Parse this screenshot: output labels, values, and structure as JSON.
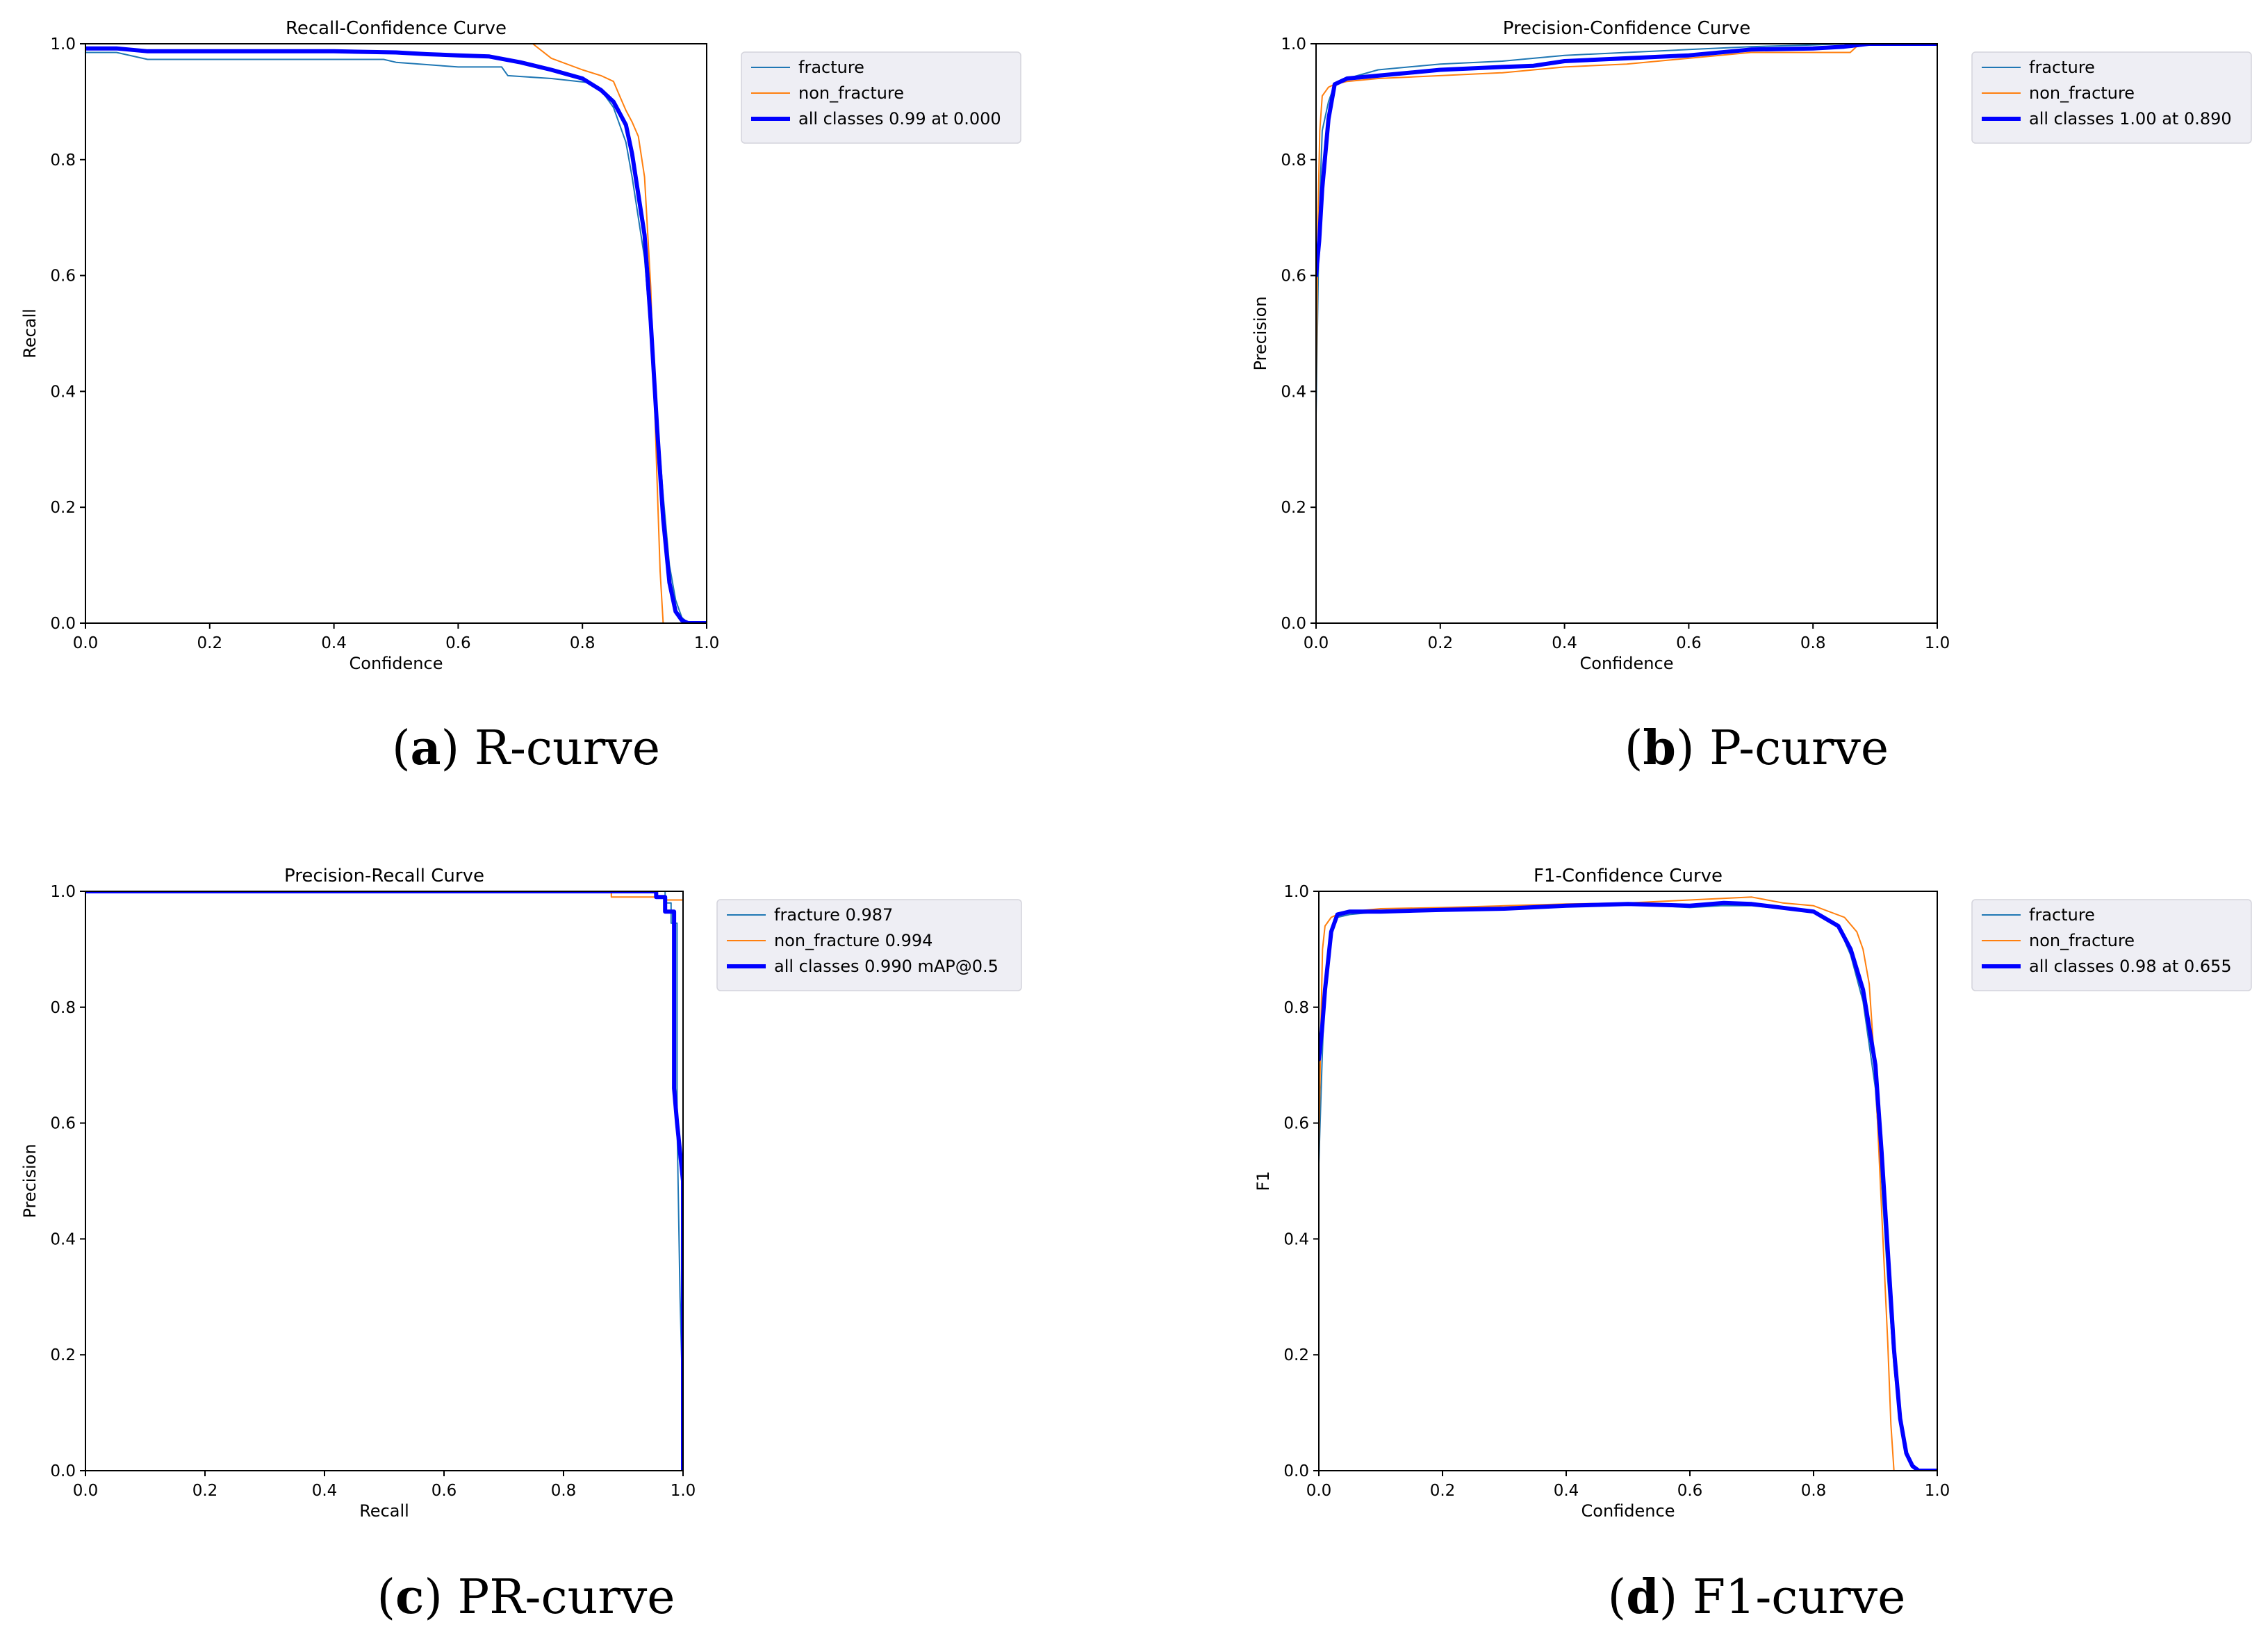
{
  "chart_data": [
    {
      "type": "line",
      "title": "Recall-Confidence Curve",
      "xlabel": "Confidence",
      "ylabel": "Recall",
      "xlim": [
        0,
        1
      ],
      "ylim": [
        0,
        1
      ],
      "xticks": [
        "0.0",
        "0.2",
        "0.4",
        "0.6",
        "0.8",
        "1.0"
      ],
      "yticks": [
        "0.0",
        "0.2",
        "0.4",
        "0.6",
        "0.8",
        "1.0"
      ],
      "grid": false,
      "legend_position": "outside-right",
      "caption": {
        "letter": "a",
        "text": "R-curve"
      },
      "series": [
        {
          "name": "fracture",
          "color": "#1f77b4",
          "width": 2,
          "x": [
            0,
            0.05,
            0.1,
            0.2,
            0.3,
            0.4,
            0.48,
            0.5,
            0.6,
            0.67,
            0.68,
            0.75,
            0.81,
            0.83,
            0.85,
            0.87,
            0.88,
            0.9,
            0.91,
            0.92,
            0.93,
            0.94,
            0.95,
            0.96,
            0.97,
            1.0
          ],
          "y": [
            0.985,
            0.985,
            0.973,
            0.973,
            0.973,
            0.973,
            0.973,
            0.968,
            0.96,
            0.96,
            0.945,
            0.94,
            0.933,
            0.92,
            0.89,
            0.83,
            0.77,
            0.63,
            0.5,
            0.36,
            0.22,
            0.1,
            0.04,
            0.01,
            0.0,
            0.0
          ]
        },
        {
          "name": "non_fracture",
          "color": "#ff7f0e",
          "width": 2,
          "x": [
            0.72,
            0.75,
            0.8,
            0.83,
            0.85,
            0.86,
            0.87,
            0.88,
            0.89,
            0.9,
            0.91,
            0.915,
            0.92,
            0.925,
            0.93
          ],
          "y": [
            1.0,
            0.975,
            0.955,
            0.945,
            0.935,
            0.91,
            0.885,
            0.865,
            0.84,
            0.77,
            0.58,
            0.42,
            0.25,
            0.09,
            0.0
          ]
        },
        {
          "name": "all classes 0.99 at 0.000",
          "color": "#0000ff",
          "width": 6,
          "x": [
            0,
            0.05,
            0.1,
            0.2,
            0.3,
            0.4,
            0.5,
            0.55,
            0.6,
            0.65,
            0.7,
            0.75,
            0.8,
            0.83,
            0.85,
            0.87,
            0.88,
            0.9,
            0.91,
            0.92,
            0.93,
            0.94,
            0.95,
            0.96,
            0.97,
            1.0
          ],
          "y": [
            0.992,
            0.992,
            0.987,
            0.987,
            0.987,
            0.987,
            0.985,
            0.982,
            0.98,
            0.978,
            0.968,
            0.955,
            0.94,
            0.92,
            0.9,
            0.86,
            0.81,
            0.67,
            0.52,
            0.34,
            0.18,
            0.07,
            0.02,
            0.005,
            0.0,
            0.0
          ]
        }
      ]
    },
    {
      "type": "line",
      "title": "Precision-Confidence Curve",
      "xlabel": "Confidence",
      "ylabel": "Precision",
      "xlim": [
        0,
        1
      ],
      "ylim": [
        0,
        1
      ],
      "xticks": [
        "0.0",
        "0.2",
        "0.4",
        "0.6",
        "0.8",
        "1.0"
      ],
      "yticks": [
        "0.0",
        "0.2",
        "0.4",
        "0.6",
        "0.8",
        "1.0"
      ],
      "grid": false,
      "legend_position": "outside-right",
      "caption": {
        "letter": "b",
        "text": "P-curve"
      },
      "series": [
        {
          "name": "fracture",
          "color": "#1f77b4",
          "width": 2,
          "x": [
            0.0,
            0.005,
            0.01,
            0.02,
            0.03,
            0.05,
            0.1,
            0.2,
            0.3,
            0.4,
            0.5,
            0.6,
            0.7,
            0.8,
            0.85,
            0.87,
            0.9,
            1.0
          ],
          "y": [
            0.36,
            0.7,
            0.85,
            0.9,
            0.93,
            0.94,
            0.955,
            0.965,
            0.97,
            0.98,
            0.985,
            0.99,
            0.995,
            0.998,
            1.0,
            1.0,
            1.0,
            1.0
          ]
        },
        {
          "name": "non_fracture",
          "color": "#ff7f0e",
          "width": 2,
          "x": [
            0.0,
            0.003,
            0.006,
            0.01,
            0.02,
            0.03,
            0.05,
            0.1,
            0.2,
            0.3,
            0.4,
            0.5,
            0.6,
            0.7,
            0.8,
            0.86,
            0.87,
            0.9,
            1.0
          ],
          "y": [
            0.4,
            0.7,
            0.85,
            0.91,
            0.925,
            0.93,
            0.935,
            0.94,
            0.945,
            0.95,
            0.96,
            0.965,
            0.975,
            0.985,
            0.985,
            0.985,
            0.995,
            1.0,
            1.0
          ]
        },
        {
          "name": "all classes 1.00 at 0.890",
          "color": "#0000ff",
          "width": 6,
          "x": [
            0.0,
            0.005,
            0.01,
            0.02,
            0.03,
            0.05,
            0.1,
            0.2,
            0.3,
            0.35,
            0.4,
            0.5,
            0.6,
            0.7,
            0.8,
            0.85,
            0.89,
            1.0
          ],
          "y": [
            0.6,
            0.66,
            0.75,
            0.87,
            0.93,
            0.94,
            0.945,
            0.955,
            0.96,
            0.962,
            0.97,
            0.975,
            0.98,
            0.99,
            0.992,
            0.995,
            1.0,
            1.0
          ]
        }
      ]
    },
    {
      "type": "line",
      "title": "Precision-Recall Curve",
      "xlabel": "Recall",
      "ylabel": "Precision",
      "xlim": [
        0,
        1
      ],
      "ylim": [
        0,
        1
      ],
      "xticks": [
        "0.0",
        "0.2",
        "0.4",
        "0.6",
        "0.8",
        "1.0"
      ],
      "yticks": [
        "0.0",
        "0.2",
        "0.4",
        "0.6",
        "0.8",
        "1.0"
      ],
      "grid": false,
      "legend_position": "outside-right",
      "caption": {
        "letter": "c",
        "text": "PR-curve"
      },
      "series": [
        {
          "name": "fracture 0.987",
          "color": "#1f77b4",
          "width": 2,
          "x": [
            0.0,
            0.9,
            0.97,
            0.97,
            0.98,
            0.98,
            0.99,
            0.99,
            0.995,
            1.0,
            1.0
          ],
          "y": [
            1.0,
            1.0,
            1.0,
            0.98,
            0.98,
            0.945,
            0.945,
            0.6,
            0.3,
            0.1,
            0.0
          ]
        },
        {
          "name": "non_fracture 0.994",
          "color": "#ff7f0e",
          "width": 2,
          "x": [
            0.0,
            0.88,
            0.88,
            0.97,
            0.97,
            1.0,
            1.0
          ],
          "y": [
            1.0,
            1.0,
            0.99,
            0.99,
            0.985,
            0.985,
            0.0
          ]
        },
        {
          "name": "all classes 0.990 mAP@0.5",
          "color": "#0000ff",
          "width": 6,
          "x": [
            0.0,
            0.955,
            0.955,
            0.97,
            0.97,
            0.985,
            0.985,
            0.99,
            0.995,
            1.0,
            1.0
          ],
          "y": [
            1.0,
            1.0,
            0.99,
            0.99,
            0.965,
            0.965,
            0.66,
            0.6,
            0.55,
            0.5,
            0.0
          ]
        }
      ]
    },
    {
      "type": "line",
      "title": "F1-Confidence Curve",
      "xlabel": "Confidence",
      "ylabel": "F1",
      "xlim": [
        0,
        1
      ],
      "ylim": [
        0,
        1
      ],
      "xticks": [
        "0.0",
        "0.2",
        "0.4",
        "0.6",
        "0.8",
        "1.0"
      ],
      "yticks": [
        "0.0",
        "0.2",
        "0.4",
        "0.6",
        "0.8",
        "1.0"
      ],
      "grid": false,
      "legend_position": "outside-right",
      "caption": {
        "letter": "d",
        "text": "F1-curve"
      },
      "series": [
        {
          "name": "fracture",
          "color": "#1f77b4",
          "width": 2,
          "x": [
            0.0,
            0.005,
            0.01,
            0.02,
            0.03,
            0.05,
            0.1,
            0.2,
            0.3,
            0.4,
            0.5,
            0.6,
            0.65,
            0.7,
            0.8,
            0.84,
            0.86,
            0.88,
            0.9,
            0.91,
            0.92,
            0.93,
            0.94,
            0.95,
            0.96,
            0.97,
            1.0
          ],
          "y": [
            0.53,
            0.7,
            0.85,
            0.93,
            0.955,
            0.96,
            0.965,
            0.97,
            0.972,
            0.975,
            0.978,
            0.972,
            0.975,
            0.975,
            0.965,
            0.94,
            0.89,
            0.81,
            0.66,
            0.5,
            0.33,
            0.18,
            0.08,
            0.03,
            0.008,
            0.0,
            0.0
          ]
        },
        {
          "name": "non_fracture",
          "color": "#ff7f0e",
          "width": 2,
          "x": [
            0.0,
            0.003,
            0.006,
            0.01,
            0.02,
            0.03,
            0.05,
            0.1,
            0.2,
            0.3,
            0.4,
            0.5,
            0.6,
            0.7,
            0.75,
            0.8,
            0.85,
            0.87,
            0.88,
            0.89,
            0.9,
            0.91,
            0.92,
            0.925,
            0.93
          ],
          "y": [
            0.55,
            0.75,
            0.9,
            0.94,
            0.955,
            0.96,
            0.965,
            0.97,
            0.972,
            0.975,
            0.978,
            0.98,
            0.985,
            0.99,
            0.98,
            0.975,
            0.955,
            0.93,
            0.9,
            0.84,
            0.68,
            0.45,
            0.22,
            0.08,
            0.0
          ]
        },
        {
          "name": "all classes 0.98 at 0.655",
          "color": "#0000ff",
          "width": 6,
          "x": [
            0.0,
            0.005,
            0.01,
            0.02,
            0.03,
            0.05,
            0.1,
            0.2,
            0.3,
            0.4,
            0.5,
            0.6,
            0.655,
            0.7,
            0.8,
            0.84,
            0.86,
            0.88,
            0.9,
            0.91,
            0.92,
            0.93,
            0.94,
            0.95,
            0.96,
            0.97,
            1.0
          ],
          "y": [
            0.71,
            0.76,
            0.83,
            0.93,
            0.96,
            0.965,
            0.965,
            0.968,
            0.97,
            0.975,
            0.978,
            0.975,
            0.98,
            0.978,
            0.965,
            0.94,
            0.9,
            0.83,
            0.7,
            0.55,
            0.38,
            0.21,
            0.09,
            0.03,
            0.008,
            0.0,
            0.0
          ]
        }
      ]
    }
  ]
}
